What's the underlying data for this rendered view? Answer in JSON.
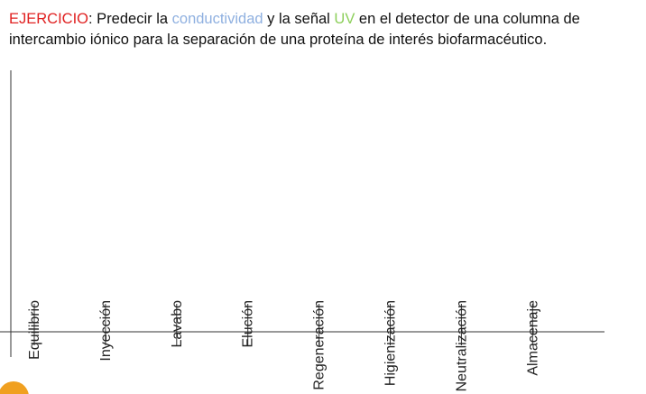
{
  "header": {
    "label": "EJERCICIO",
    "part1": ": Predecir la ",
    "conductivity": "conductividad",
    "part2": " y la señal ",
    "uv": "UV",
    "part3": " en el detector de una columna de intercambio iónico para la separación de una proteína de interés biofarmacéutico."
  },
  "phases": [
    "Equilibrio",
    "Inyección",
    "Lavabo",
    "Elución",
    "Regeneración",
    "Higienización",
    "Neutralización",
    "Almacenaje"
  ]
}
